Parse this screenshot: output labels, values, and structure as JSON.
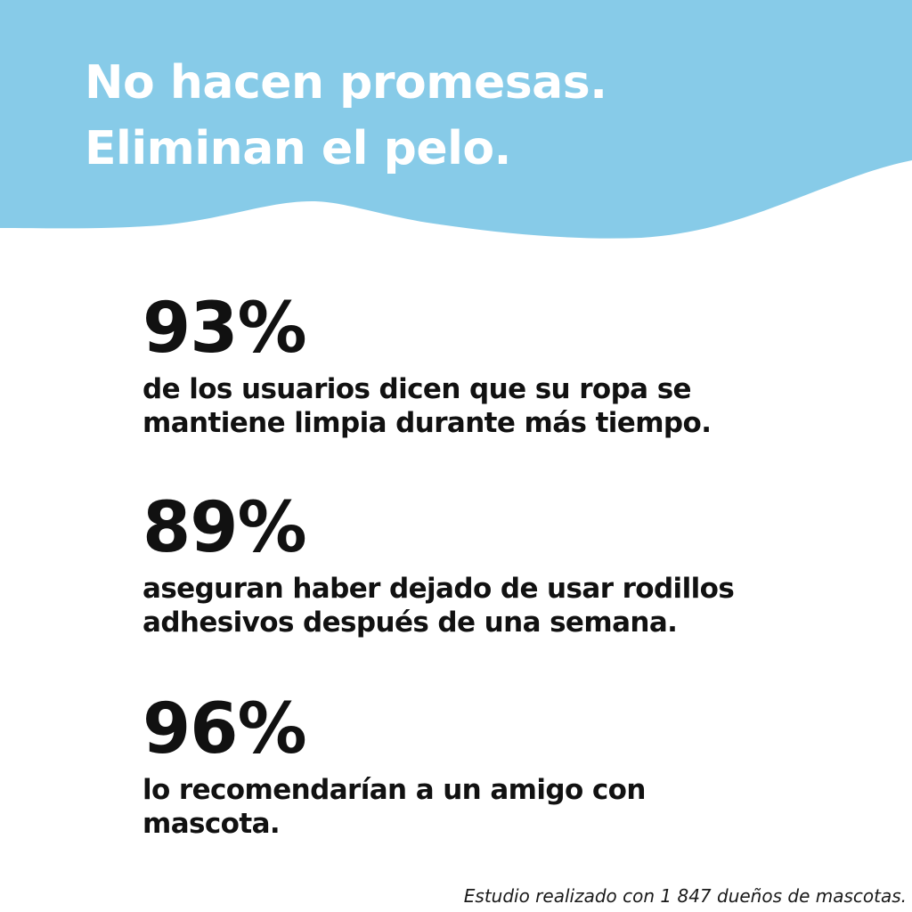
{
  "colors": {
    "banner": "#87CBE8",
    "headline": "#FFFFFF",
    "text": "#111111",
    "background": "#FFFFFF"
  },
  "header": {
    "lines": [
      "No hacen promesas.",
      "Eliminan el pelo."
    ]
  },
  "stats": [
    {
      "value": "93%",
      "description_lines": [
        "de los usuarios dicen que su ropa se",
        "mantiene limpia durante más tiempo."
      ]
    },
    {
      "value": "89%",
      "description_lines": [
        "aseguran haber dejado de usar rodillos",
        "adhesivos después de una semana."
      ]
    },
    {
      "value": "96%",
      "description_lines": [
        "lo recomendarían a un amigo con",
        "mascota."
      ]
    }
  ],
  "footnote": "Estudio realizado con 1 847 dueños de mascotas."
}
